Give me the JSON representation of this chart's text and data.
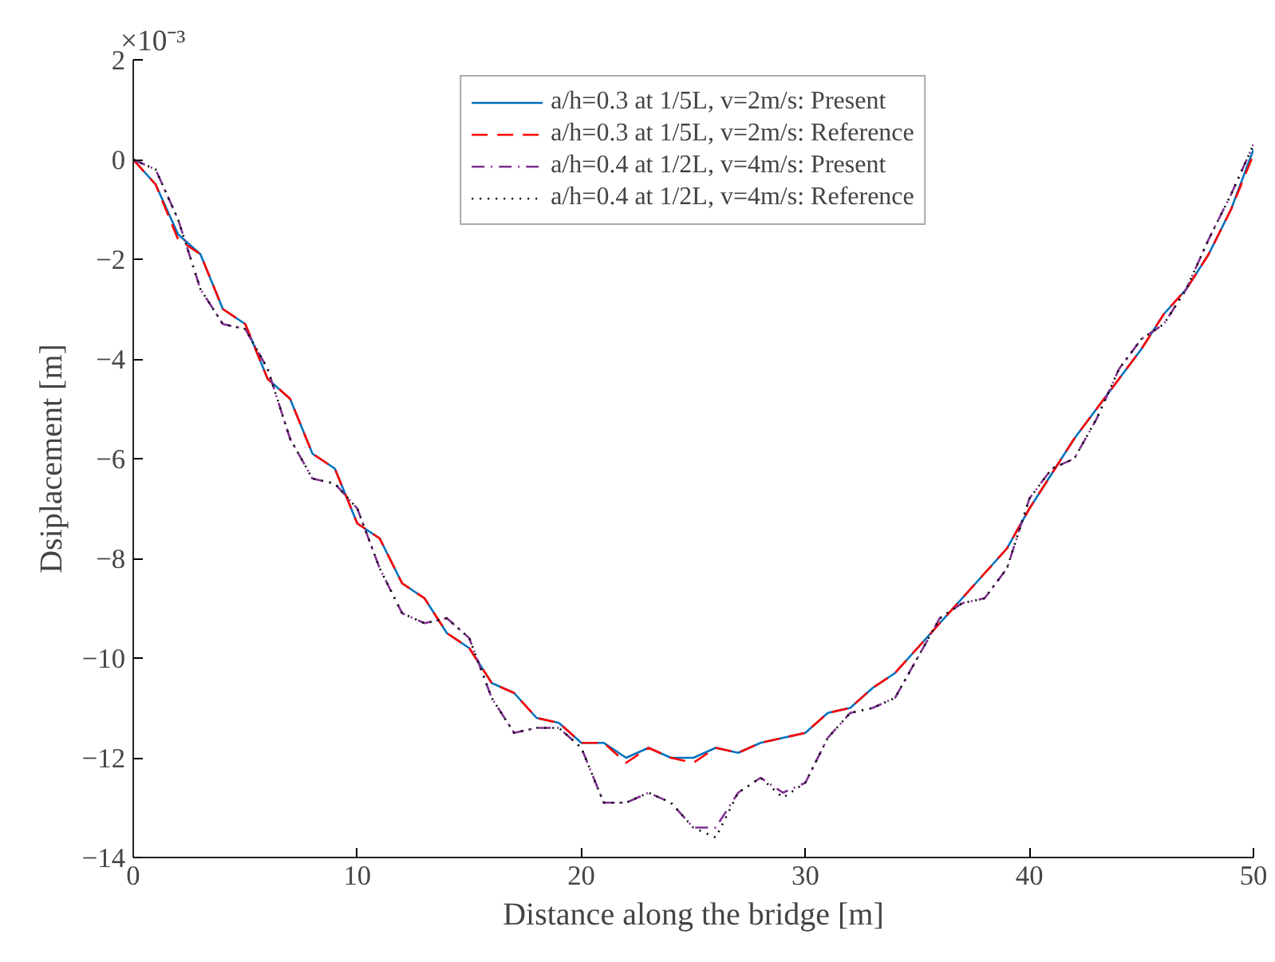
{
  "chart_data": {
    "type": "line",
    "xlabel": "Distance along the bridge [m]",
    "ylabel": "Dsiplacement [m]",
    "annotations": [
      "×10⁻³"
    ],
    "x": [
      0,
      1,
      2,
      3,
      4,
      5,
      6,
      7,
      8,
      9,
      10,
      11,
      12,
      13,
      14,
      15,
      16,
      17,
      18,
      19,
      20,
      21,
      22,
      23,
      24,
      25,
      26,
      27,
      28,
      29,
      30,
      31,
      32,
      33,
      34,
      35,
      36,
      37,
      38,
      39,
      40,
      41,
      42,
      43,
      44,
      45,
      46,
      47,
      48,
      49,
      50
    ],
    "xlim": [
      0,
      50
    ],
    "xticks": [
      0,
      10,
      20,
      30,
      40,
      50
    ],
    "ylim": [
      -14,
      2
    ],
    "yticks": [
      -14,
      -12,
      -10,
      -8,
      -6,
      -4,
      -2,
      0,
      2
    ],
    "grid": false,
    "legend": "top",
    "series": [
      {
        "name": "a/h=0.3 at 1/5L, v=2m/s: Present",
        "color": "#0072bd",
        "line_style": "solid",
        "values": [
          0,
          -0.5,
          -1.5,
          -1.9,
          -3.0,
          -3.3,
          -4.4,
          -4.8,
          -5.9,
          -6.2,
          -7.3,
          -7.6,
          -8.5,
          -8.8,
          -9.5,
          -9.8,
          -10.5,
          -10.7,
          -11.2,
          -11.3,
          -11.7,
          -11.7,
          -12.0,
          -11.8,
          -12.0,
          -12.0,
          -11.8,
          -11.9,
          -11.7,
          -11.6,
          -11.5,
          -11.1,
          -11.0,
          -10.6,
          -10.3,
          -9.8,
          -9.3,
          -8.8,
          -8.3,
          -7.8,
          -7.0,
          -6.3,
          -5.6,
          -5.0,
          -4.4,
          -3.8,
          -3.1,
          -2.6,
          -1.9,
          -1.0,
          0.2
        ]
      },
      {
        "name": "a/h=0.3 at 1/5L, v=2m/s: Reference",
        "color": "#ff0000",
        "line_style": "dashed",
        "values": [
          0,
          -0.5,
          -1.6,
          -1.9,
          -3.0,
          -3.3,
          -4.4,
          -4.8,
          -5.9,
          -6.2,
          -7.3,
          -7.6,
          -8.5,
          -8.8,
          -9.5,
          -9.8,
          -10.5,
          -10.7,
          -11.2,
          -11.3,
          -11.7,
          -11.7,
          -12.1,
          -11.8,
          -12.0,
          -12.1,
          -11.8,
          -11.9,
          -11.7,
          -11.6,
          -11.5,
          -11.1,
          -11.0,
          -10.6,
          -10.3,
          -9.8,
          -9.3,
          -8.8,
          -8.3,
          -7.8,
          -7.0,
          -6.3,
          -5.6,
          -5.0,
          -4.4,
          -3.8,
          -3.1,
          -2.6,
          -1.9,
          -1.0,
          0.1
        ]
      },
      {
        "name": "a/h=0.4 at 1/2L, v=4m/s: Present",
        "color": "#7e2f8e",
        "line_style": "dashdot",
        "values": [
          0,
          -0.2,
          -1.2,
          -2.6,
          -3.3,
          -3.4,
          -4.2,
          -5.6,
          -6.4,
          -6.5,
          -7.0,
          -8.2,
          -9.1,
          -9.3,
          -9.2,
          -9.6,
          -10.8,
          -11.5,
          -11.4,
          -11.4,
          -11.8,
          -12.9,
          -12.9,
          -12.7,
          -12.9,
          -13.4,
          -13.4,
          -12.7,
          -12.4,
          -12.7,
          -12.5,
          -11.6,
          -11.1,
          -11.0,
          -10.8,
          -10.0,
          -9.2,
          -8.9,
          -8.8,
          -8.2,
          -6.8,
          -6.2,
          -6.0,
          -5.2,
          -4.2,
          -3.6,
          -3.3,
          -2.6,
          -1.6,
          -0.7,
          0.3
        ]
      },
      {
        "name": "a/h=0.4 at 1/2L, v=4m/s: Reference",
        "color": "#000000",
        "line_style": "dotted",
        "values": [
          0,
          -0.2,
          -1.2,
          -2.6,
          -3.3,
          -3.4,
          -4.2,
          -5.6,
          -6.4,
          -6.5,
          -7.0,
          -8.2,
          -9.1,
          -9.3,
          -9.2,
          -9.6,
          -10.8,
          -11.5,
          -11.4,
          -11.4,
          -11.8,
          -12.9,
          -12.9,
          -12.7,
          -12.9,
          -13.4,
          -13.6,
          -12.7,
          -12.4,
          -12.8,
          -12.5,
          -11.6,
          -11.1,
          -11.0,
          -10.8,
          -10.0,
          -9.2,
          -8.9,
          -8.8,
          -8.2,
          -6.8,
          -6.2,
          -6.0,
          -5.2,
          -4.2,
          -3.6,
          -3.3,
          -2.6,
          -1.6,
          -0.7,
          0.3
        ]
      }
    ]
  }
}
